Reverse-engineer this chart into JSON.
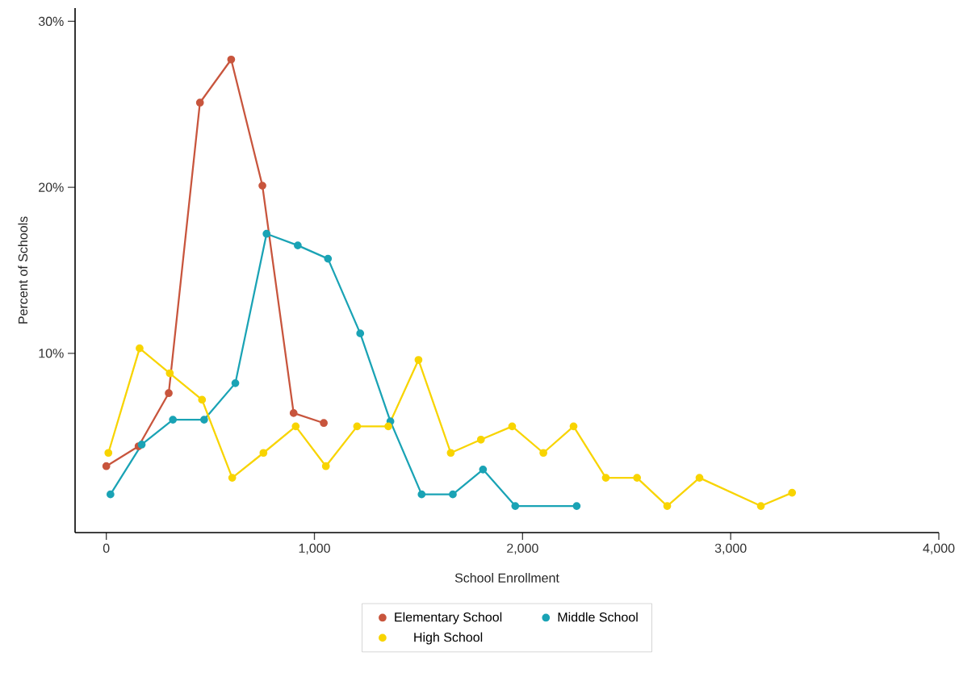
{
  "chart_data": {
    "type": "line",
    "xlabel": "School Enrollment",
    "ylabel": "Percent of Schools",
    "xlim": [
      -150,
      4000
    ],
    "ylim": [
      -0.8,
      30.8
    ],
    "xticks": [
      {
        "value": 0,
        "label": "0"
      },
      {
        "value": 1000,
        "label": "1,000"
      },
      {
        "value": 2000,
        "label": "2,000"
      },
      {
        "value": 3000,
        "label": "3,000"
      },
      {
        "value": 4000,
        "label": "4,000"
      }
    ],
    "yticks": [
      {
        "value": 10,
        "label": "10%"
      },
      {
        "value": 20,
        "label": "20%"
      },
      {
        "value": 30,
        "label": "30%"
      }
    ],
    "legend": "bottom",
    "marker": "circle",
    "line_style": "solid",
    "series": [
      {
        "name": "Elementary School",
        "color": "#c8553d",
        "x": [
          0,
          155,
          300,
          450,
          600,
          750,
          900,
          1045
        ],
        "values": [
          3.2,
          4.4,
          7.6,
          25.1,
          27.7,
          20.1,
          6.4,
          5.8
        ]
      },
      {
        "name": "Middle School",
        "color": "#1aa3b5",
        "x": [
          20,
          170,
          320,
          470,
          620,
          770,
          920,
          1065,
          1220,
          1365,
          1515,
          1665,
          1810,
          1965,
          2260
        ],
        "values": [
          1.5,
          4.5,
          6.0,
          6.0,
          8.2,
          17.2,
          16.5,
          15.7,
          11.2,
          5.9,
          1.5,
          1.5,
          3.0,
          0.8,
          0.8
        ]
      },
      {
        "name": "High School",
        "color": "#f8d400",
        "x": [
          10,
          160,
          305,
          460,
          605,
          755,
          910,
          1055,
          1205,
          1355,
          1500,
          1655,
          1800,
          1950,
          2100,
          2245,
          2400,
          2550,
          2695,
          2850,
          3145,
          3295
        ],
        "values": [
          4.0,
          10.3,
          8.8,
          7.2,
          2.5,
          4.0,
          5.6,
          3.2,
          5.6,
          5.6,
          9.6,
          4.0,
          4.8,
          5.6,
          4.0,
          5.6,
          2.5,
          2.5,
          0.8,
          2.5,
          0.8,
          1.6
        ]
      }
    ]
  }
}
